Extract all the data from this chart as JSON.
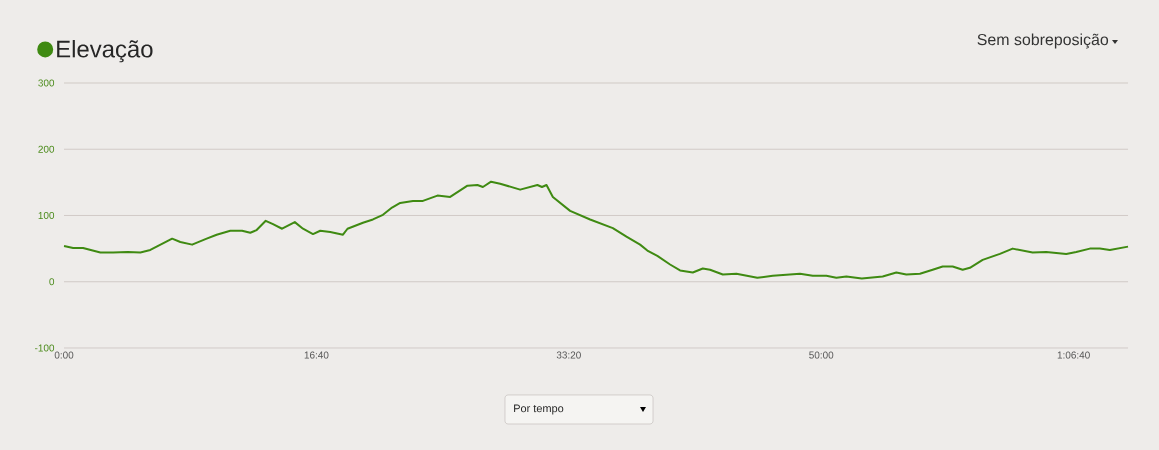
{
  "chart_data": {
    "type": "line",
    "x": [
      0,
      0.6,
      1.26,
      2.4,
      3.24,
      4.2,
      5.04,
      5.7,
      7.14,
      7.68,
      8.46,
      9.42,
      10.08,
      10.98,
      11.76,
      12.3,
      12.72,
      13.32,
      13.8,
      14.4,
      15.24,
      15.78,
      16.44,
      16.92,
      17.58,
      18.42,
      18.72,
      19.74,
      20.4,
      21.06,
      21.66,
      22.2,
      23.04,
      23.7,
      24.66,
      25.5,
      26.64,
      27.3,
      27.66,
      28.2,
      28.8,
      30.12,
      31.26,
      31.56,
      31.86,
      32.28,
      33.42,
      34.74,
      36.24,
      37.14,
      38.04,
      38.52,
      39.18,
      40.02,
      40.68,
      41.52,
      42.18,
      42.66,
      43.5,
      44.4,
      45.78,
      46.8,
      48.6,
      49.44,
      50.34,
      51,
      51.66,
      52.68,
      54.06,
      54.96,
      55.62,
      56.52,
      57.36,
      58.02,
      58.68,
      59.34,
      59.82,
      60.66,
      61.8,
      62.64,
      63.96,
      64.86,
      66.18,
      66.84,
      67.74,
      68.4,
      69.06,
      70.26
    ],
    "series": [
      {
        "name": "Elevação",
        "color": "#3f8a12",
        "values": [
          54,
          51,
          51,
          44,
          44,
          45,
          44,
          48,
          65,
          60,
          56,
          65,
          71,
          77,
          77,
          74,
          78,
          92,
          87,
          80,
          90,
          80,
          72,
          77,
          75,
          71,
          80,
          89,
          94,
          101,
          112,
          119,
          122,
          122,
          130,
          128,
          145,
          146,
          143,
          151,
          148,
          139,
          146,
          143,
          146,
          128,
          107,
          94,
          81,
          68,
          56,
          47,
          39,
          26,
          17,
          14,
          20,
          18,
          11,
          12,
          6,
          9,
          12,
          9,
          9,
          6,
          8,
          5,
          8,
          14,
          11,
          12,
          18,
          23,
          23,
          18,
          21,
          33,
          42,
          50,
          44,
          45,
          42,
          45,
          50,
          50,
          48,
          53
        ]
      }
    ],
    "xlim": [
      0,
      70.26
    ],
    "ylim": [
      -100,
      300
    ],
    "xticks": [
      {
        "value": 0,
        "label": "0:00"
      },
      {
        "value": 16.667,
        "label": "16:40"
      },
      {
        "value": 33.333,
        "label": "33:20"
      },
      {
        "value": 50,
        "label": "50:00"
      },
      {
        "value": 66.667,
        "label": "1:06:40"
      }
    ],
    "yticks": [
      -100,
      0,
      100,
      200,
      300
    ],
    "grid": "y",
    "legend": "top left",
    "marker": "none",
    "line_style": "solid",
    "annotations": [
      "Sem sobreposição",
      "Por tempo"
    ]
  }
}
